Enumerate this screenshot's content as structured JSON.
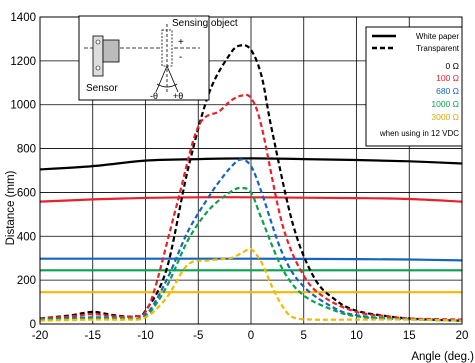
{
  "chart_data": {
    "type": "line",
    "xlabel": "Angle (deg.)",
    "ylabel": "Distance (mm)",
    "xlim": [
      -20,
      20
    ],
    "ylim": [
      0,
      1400
    ],
    "xticks": [
      -20,
      -15,
      -10,
      -5,
      0,
      5,
      10,
      15,
      20
    ],
    "yticks": [
      0,
      200,
      400,
      600,
      800,
      1000,
      1200,
      1400
    ],
    "grid": true,
    "legend_position": "top-right",
    "legend": {
      "styles": [
        {
          "name": "White paper",
          "dash": "solid"
        },
        {
          "name": "Transparent",
          "dash": "dashed"
        }
      ],
      "resistors": [
        {
          "name": "0 Ω",
          "color": "#000000"
        },
        {
          "name": "100 Ω",
          "color": "#e8212a"
        },
        {
          "name": "680 Ω",
          "color": "#1565c0"
        },
        {
          "name": "1000 Ω",
          "color": "#0aa050"
        },
        {
          "name": "3000 Ω",
          "color": "#f5b800"
        }
      ],
      "note": "when using in 12 VDC"
    },
    "inset": {
      "sensor_label": "Sensor",
      "object_label": "Sensing object",
      "minus_theta": "-θ",
      "plus_theta": "+θ",
      "plus_sign": "+",
      "minus_sign": "-"
    },
    "series": [
      {
        "name": "0 Ω",
        "style": "White paper",
        "color": "#000000",
        "dash": "solid",
        "x": [
          -20,
          -15,
          -10,
          -5,
          0,
          5,
          10,
          15,
          20
        ],
        "y": [
          705,
          720,
          745,
          752,
          755,
          752,
          748,
          742,
          732
        ]
      },
      {
        "name": "100 Ω",
        "style": "White paper",
        "color": "#e8212a",
        "dash": "solid",
        "x": [
          -20,
          -15,
          -10,
          -5,
          0,
          5,
          10,
          15,
          20
        ],
        "y": [
          558,
          568,
          575,
          578,
          578,
          576,
          574,
          570,
          558
        ]
      },
      {
        "name": "680 Ω",
        "style": "White paper",
        "color": "#1565c0",
        "dash": "solid",
        "x": [
          -20,
          -15,
          -10,
          -5,
          0,
          5,
          10,
          15,
          20
        ],
        "y": [
          298,
          298,
          298,
          298,
          298,
          297,
          296,
          294,
          290
        ]
      },
      {
        "name": "1000 Ω",
        "style": "White paper",
        "color": "#0aa050",
        "dash": "solid",
        "x": [
          -20,
          -15,
          -10,
          -5,
          0,
          5,
          10,
          15,
          20
        ],
        "y": [
          245,
          245,
          245,
          245,
          245,
          245,
          245,
          245,
          245
        ]
      },
      {
        "name": "3000 Ω",
        "style": "White paper",
        "color": "#f5b800",
        "dash": "solid",
        "x": [
          -20,
          -15,
          -10,
          -5,
          0,
          5,
          10,
          15,
          20
        ],
        "y": [
          145,
          145,
          145,
          145,
          145,
          145,
          145,
          145,
          145
        ]
      },
      {
        "name": "0 Ω",
        "style": "Transparent",
        "color": "#000000",
        "dash": "dashed",
        "x": [
          -20,
          -17,
          -15,
          -13,
          -11,
          -10,
          -8,
          -6,
          -4,
          -2,
          -1,
          0,
          1,
          2,
          4,
          6,
          8,
          10,
          13,
          15,
          17,
          20
        ],
        "y": [
          25,
          40,
          55,
          40,
          35,
          60,
          250,
          700,
          1050,
          1230,
          1270,
          1250,
          1130,
          880,
          450,
          210,
          110,
          60,
          35,
          25,
          20,
          15
        ]
      },
      {
        "name": "100 Ω",
        "style": "Transparent",
        "color": "#e8212a",
        "dash": "dashed",
        "x": [
          -20,
          -17,
          -15,
          -13,
          -11,
          -10,
          -9,
          -7,
          -5,
          -3,
          -2,
          -1,
          0,
          1,
          3,
          5,
          7,
          10,
          13,
          15,
          20
        ],
        "y": [
          25,
          35,
          45,
          35,
          35,
          55,
          180,
          550,
          900,
          970,
          1015,
          1040,
          1030,
          900,
          450,
          220,
          120,
          55,
          35,
          25,
          20
        ]
      },
      {
        "name": "680 Ω",
        "style": "Transparent",
        "color": "#1565c0",
        "dash": "dashed",
        "x": [
          -20,
          -15,
          -12,
          -10,
          -8,
          -6,
          -4,
          -3,
          -2,
          -1,
          0,
          1,
          3,
          5,
          8,
          10,
          13,
          16,
          20
        ],
        "y": [
          20,
          30,
          25,
          40,
          200,
          420,
          580,
          650,
          710,
          750,
          720,
          600,
          320,
          170,
          70,
          40,
          25,
          20,
          15
        ]
      },
      {
        "name": "1000 Ω",
        "style": "Transparent",
        "color": "#0aa050",
        "dash": "dashed",
        "x": [
          -20,
          -15,
          -12,
          -10,
          -8,
          -6,
          -4,
          -2,
          -1,
          0,
          1,
          3,
          5,
          8,
          10,
          13,
          16,
          20
        ],
        "y": [
          20,
          25,
          25,
          35,
          170,
          380,
          520,
          600,
          620,
          600,
          480,
          250,
          130,
          60,
          35,
          25,
          20,
          15
        ]
      },
      {
        "name": "3000 Ω",
        "style": "Transparent",
        "color": "#f5b800",
        "dash": "dashed",
        "x": [
          -20,
          -15,
          -12,
          -10,
          -8,
          -6,
          -4,
          -2,
          -1,
          0,
          1,
          2,
          3,
          4,
          6,
          10,
          15,
          20
        ],
        "y": [
          15,
          20,
          20,
          30,
          120,
          270,
          290,
          300,
          320,
          340,
          280,
          170,
          80,
          30,
          20,
          20,
          20,
          15
        ]
      }
    ]
  }
}
